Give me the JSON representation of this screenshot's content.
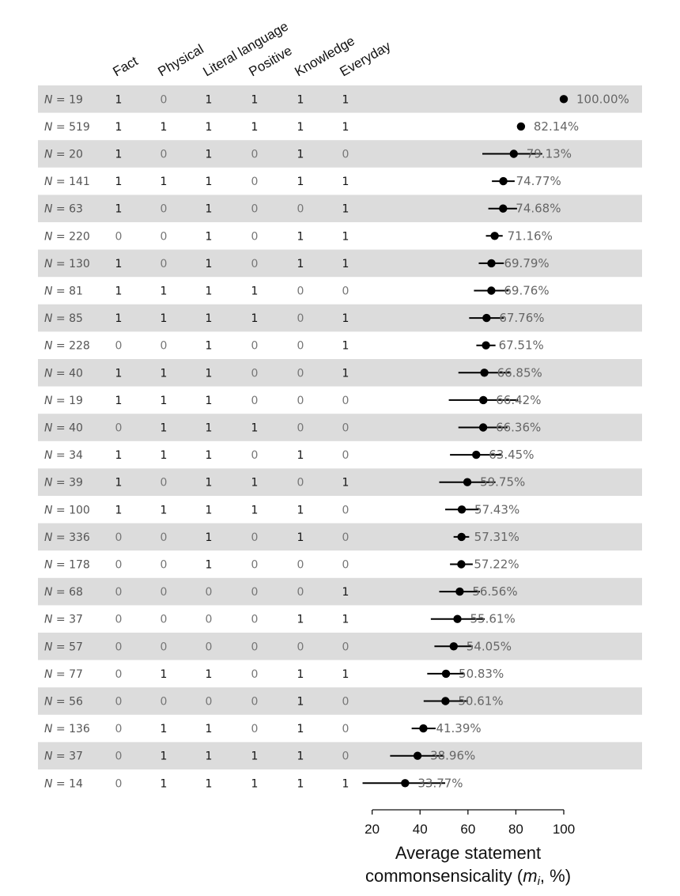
{
  "chart_data": {
    "type": "scatter",
    "title": "",
    "columns": [
      "Fact",
      "Physical",
      "Literal language",
      "Positive",
      "Knowledge",
      "Everyday"
    ],
    "xlabel": "Average statement commonsensicality (m_i, %)",
    "xlabel_line1": "Average statement",
    "xlabel_line2_pre": "commonsensicality (",
    "xlabel_var": "m",
    "xlabel_sub": "i",
    "xlabel_line2_post": ", %)",
    "n_label": "N",
    "n_eq": " = ",
    "xlim": [
      15,
      100
    ],
    "xticks": [
      20,
      40,
      60,
      80,
      100
    ],
    "grid": false,
    "band_color": "#dcdcdc",
    "point_color": "#000000",
    "rows": [
      {
        "n": 19,
        "flags": [
          1,
          0,
          1,
          1,
          1,
          1
        ],
        "value": 100.0,
        "ci": [
          100.0,
          100.0
        ],
        "label": "100.00%"
      },
      {
        "n": 519,
        "flags": [
          1,
          1,
          1,
          1,
          1,
          1
        ],
        "value": 82.14,
        "ci": [
          80.5,
          83.5
        ],
        "label": "82.14%"
      },
      {
        "n": 20,
        "flags": [
          1,
          0,
          1,
          0,
          1,
          0
        ],
        "value": 79.13,
        "ci": [
          66.0,
          91.0
        ],
        "label": "79.13%"
      },
      {
        "n": 141,
        "flags": [
          1,
          1,
          1,
          0,
          1,
          1
        ],
        "value": 74.77,
        "ci": [
          70.0,
          79.5
        ],
        "label": "74.77%"
      },
      {
        "n": 63,
        "flags": [
          1,
          0,
          1,
          0,
          0,
          1
        ],
        "value": 74.68,
        "ci": [
          68.5,
          80.5
        ],
        "label": "74.68%"
      },
      {
        "n": 220,
        "flags": [
          0,
          0,
          1,
          0,
          1,
          1
        ],
        "value": 71.16,
        "ci": [
          67.5,
          74.5
        ],
        "label": "71.16%"
      },
      {
        "n": 130,
        "flags": [
          1,
          0,
          1,
          0,
          1,
          1
        ],
        "value": 69.79,
        "ci": [
          64.5,
          75.0
        ],
        "label": "69.79%"
      },
      {
        "n": 81,
        "flags": [
          1,
          1,
          1,
          1,
          0,
          0
        ],
        "value": 69.76,
        "ci": [
          62.5,
          77.0
        ],
        "label": "69.76%"
      },
      {
        "n": 85,
        "flags": [
          1,
          1,
          1,
          1,
          0,
          1
        ],
        "value": 67.76,
        "ci": [
          60.5,
          75.0
        ],
        "label": "67.76%"
      },
      {
        "n": 228,
        "flags": [
          0,
          0,
          1,
          0,
          0,
          1
        ],
        "value": 67.51,
        "ci": [
          63.5,
          71.5
        ],
        "label": "67.51%"
      },
      {
        "n": 40,
        "flags": [
          1,
          1,
          1,
          0,
          0,
          1
        ],
        "value": 66.85,
        "ci": [
          56.0,
          77.5
        ],
        "label": "66.85%"
      },
      {
        "n": 19,
        "flags": [
          1,
          1,
          1,
          0,
          0,
          0
        ],
        "value": 66.42,
        "ci": [
          52.0,
          81.0
        ],
        "label": "66.42%"
      },
      {
        "n": 40,
        "flags": [
          0,
          1,
          1,
          1,
          0,
          0
        ],
        "value": 66.36,
        "ci": [
          56.0,
          76.5
        ],
        "label": "66.36%"
      },
      {
        "n": 34,
        "flags": [
          1,
          1,
          1,
          0,
          1,
          0
        ],
        "value": 63.45,
        "ci": [
          52.5,
          74.0
        ],
        "label": "63.45%"
      },
      {
        "n": 39,
        "flags": [
          1,
          0,
          1,
          1,
          0,
          1
        ],
        "value": 59.75,
        "ci": [
          48.0,
          71.5
        ],
        "label": "59.75%"
      },
      {
        "n": 100,
        "flags": [
          1,
          1,
          1,
          1,
          1,
          0
        ],
        "value": 57.43,
        "ci": [
          50.5,
          64.5
        ],
        "label": "57.43%"
      },
      {
        "n": 336,
        "flags": [
          0,
          0,
          1,
          0,
          1,
          0
        ],
        "value": 57.31,
        "ci": [
          54.0,
          60.5
        ],
        "label": "57.31%"
      },
      {
        "n": 178,
        "flags": [
          0,
          0,
          1,
          0,
          0,
          0
        ],
        "value": 57.22,
        "ci": [
          52.5,
          62.0
        ],
        "label": "57.22%"
      },
      {
        "n": 68,
        "flags": [
          0,
          0,
          0,
          0,
          0,
          1
        ],
        "value": 56.56,
        "ci": [
          48.0,
          65.0
        ],
        "label": "56.56%"
      },
      {
        "n": 37,
        "flags": [
          0,
          0,
          0,
          0,
          1,
          1
        ],
        "value": 55.61,
        "ci": [
          44.5,
          67.0
        ],
        "label": "55.61%"
      },
      {
        "n": 57,
        "flags": [
          0,
          0,
          0,
          0,
          0,
          0
        ],
        "value": 54.05,
        "ci": [
          46.0,
          62.0
        ],
        "label": "54.05%"
      },
      {
        "n": 77,
        "flags": [
          0,
          1,
          1,
          0,
          1,
          1
        ],
        "value": 50.83,
        "ci": [
          43.0,
          58.5
        ],
        "label": "50.83%"
      },
      {
        "n": 56,
        "flags": [
          0,
          0,
          0,
          0,
          1,
          0
        ],
        "value": 50.61,
        "ci": [
          41.5,
          60.0
        ],
        "label": "50.61%"
      },
      {
        "n": 136,
        "flags": [
          0,
          1,
          1,
          0,
          1,
          0
        ],
        "value": 41.39,
        "ci": [
          36.5,
          46.5
        ],
        "label": "41.39%"
      },
      {
        "n": 37,
        "flags": [
          0,
          1,
          1,
          1,
          1,
          0
        ],
        "value": 38.96,
        "ci": [
          27.5,
          50.0
        ],
        "label": "38.96%"
      },
      {
        "n": 14,
        "flags": [
          0,
          1,
          1,
          1,
          1,
          1
        ],
        "value": 33.77,
        "ci": [
          16.0,
          50.5
        ],
        "label": "33.77%"
      }
    ]
  }
}
